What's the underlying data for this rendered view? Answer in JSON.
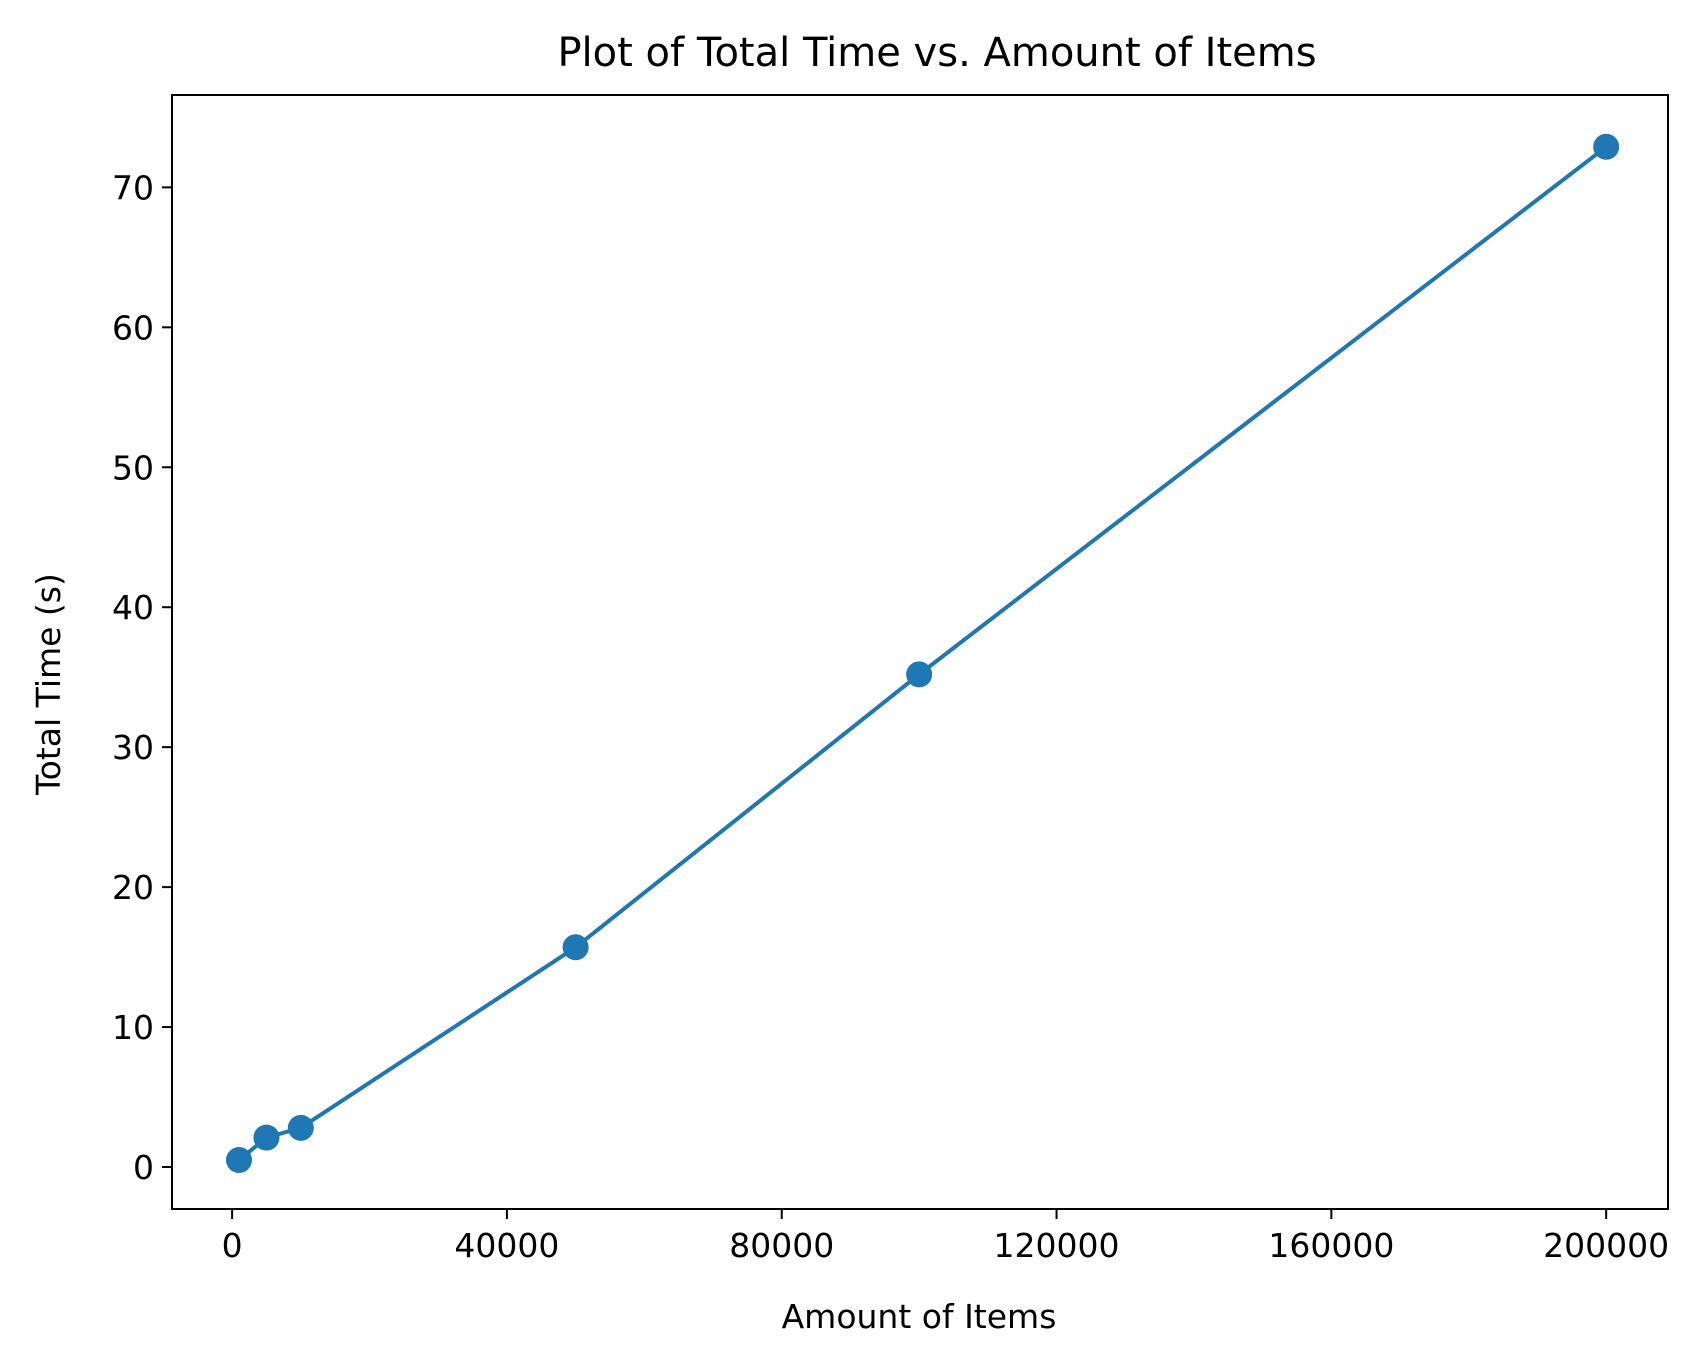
{
  "chart_data": {
    "type": "line",
    "title": "Plot of Total Time vs. Amount of Items",
    "xlabel": "Amount of Items",
    "ylabel": "Total Time (s)",
    "xlim": [
      -8750,
      209000
    ],
    "ylim": [
      -3.0,
      76.6
    ],
    "x_ticks": [
      0,
      40000,
      80000,
      120000,
      160000,
      200000
    ],
    "y_ticks": [
      0,
      10,
      20,
      30,
      40,
      50,
      60,
      70
    ],
    "grid": false,
    "legend": "none",
    "series": [
      {
        "color": "#1f77b4",
        "marker": "circle",
        "x": [
          1000,
          5000,
          10000,
          50000,
          100000,
          200000
        ],
        "y": [
          0.5,
          2.1,
          2.8,
          15.7,
          35.2,
          72.9
        ]
      }
    ]
  }
}
